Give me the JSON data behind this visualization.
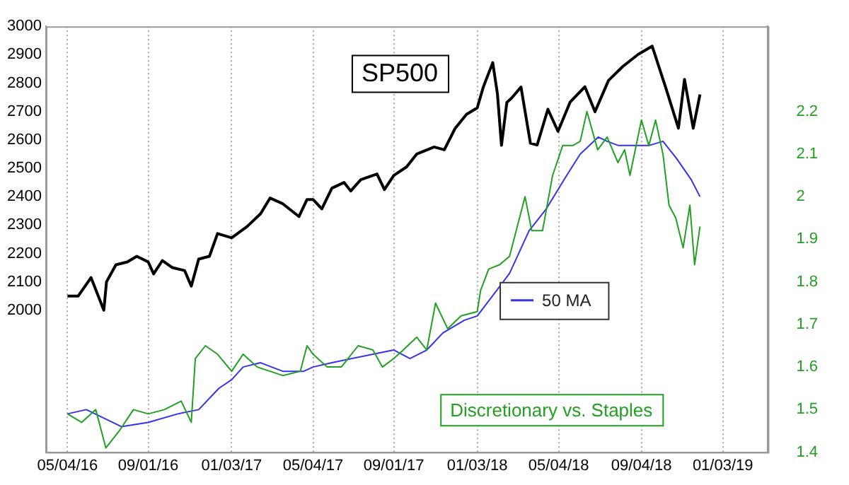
{
  "chart_data": {
    "type": "line",
    "xlim": [
      "2016-04-02",
      "2019-03-11"
    ],
    "xticks": [
      {
        "value": "2016-05-04",
        "label": "05/04/16"
      },
      {
        "value": "2016-09-01",
        "label": "09/01/16"
      },
      {
        "value": "2017-01-03",
        "label": "01/03/17"
      },
      {
        "value": "2017-05-04",
        "label": "05/04/17"
      },
      {
        "value": "2017-09-01",
        "label": "09/01/17"
      },
      {
        "value": "2018-01-03",
        "label": "01/03/18"
      },
      {
        "value": "2018-05-04",
        "label": "05/04/18"
      },
      {
        "value": "2018-09-04",
        "label": "09/04/18"
      },
      {
        "value": "2019-01-03",
        "label": "01/03/19"
      }
    ],
    "ylim": [
      1500,
      3000
    ],
    "yticks": [
      2000,
      2100,
      2200,
      2300,
      2400,
      2500,
      2600,
      2700,
      2800,
      2900,
      3000
    ],
    "y2lim": [
      1.4,
      2.4
    ],
    "y2ticks": [
      1.4,
      1.5,
      1.6,
      1.7,
      1.8,
      1.9,
      2,
      2.1,
      2.2
    ],
    "grid": "x",
    "legend": "right",
    "marker": "none",
    "series": [
      {
        "color": "#000000",
        "x": [
          "2016-05-04",
          "2016-05-20",
          "2016-06-08",
          "2016-06-27",
          "2016-07-01",
          "2016-07-15",
          "2016-08-01",
          "2016-08-15",
          "2016-09-01",
          "2016-09-09",
          "2016-09-22",
          "2016-10-07",
          "2016-10-25",
          "2016-11-04",
          "2016-11-15",
          "2016-12-01",
          "2016-12-13",
          "2017-01-03",
          "2017-01-26",
          "2017-02-15",
          "2017-03-01",
          "2017-03-20",
          "2017-04-13",
          "2017-04-25",
          "2017-05-04",
          "2017-05-17",
          "2017-06-01",
          "2017-06-19",
          "2017-06-29",
          "2017-07-14",
          "2017-08-07",
          "2017-08-18",
          "2017-09-01",
          "2017-09-20",
          "2017-10-05",
          "2017-10-31",
          "2017-11-15",
          "2017-12-01",
          "2017-12-18",
          "2018-01-03",
          "2018-01-12",
          "2018-01-26",
          "2018-02-02",
          "2018-02-08",
          "2018-02-16",
          "2018-02-23",
          "2018-03-09",
          "2018-03-23",
          "2018-04-02",
          "2018-04-18",
          "2018-05-03",
          "2018-05-21",
          "2018-06-12",
          "2018-06-27",
          "2018-07-17",
          "2018-08-07",
          "2018-08-30",
          "2018-09-20",
          "2018-10-10",
          "2018-10-29",
          "2018-11-07",
          "2018-11-20",
          "2018-11-30"
        ],
        "values": [
          2050,
          2050,
          2115,
          2000,
          2100,
          2160,
          2170,
          2190,
          2170,
          2128,
          2175,
          2150,
          2140,
          2085,
          2180,
          2190,
          2270,
          2255,
          2295,
          2340,
          2395,
          2375,
          2330,
          2390,
          2390,
          2357,
          2430,
          2450,
          2420,
          2460,
          2480,
          2425,
          2475,
          2505,
          2550,
          2575,
          2565,
          2640,
          2690,
          2713,
          2786,
          2872,
          2762,
          2581,
          2732,
          2747,
          2786,
          2588,
          2582,
          2708,
          2630,
          2733,
          2787,
          2699,
          2809,
          2858,
          2901,
          2930,
          2785,
          2641,
          2813,
          2641,
          2760
        ]
      },
      {
        "color": "#22a022",
        "axis": "y2",
        "x": [
          "2016-05-04",
          "2016-05-25",
          "2016-06-15",
          "2016-06-30",
          "2016-07-20",
          "2016-08-10",
          "2016-09-01",
          "2016-09-25",
          "2016-10-20",
          "2016-11-04",
          "2016-11-10",
          "2016-11-25",
          "2016-12-13",
          "2017-01-03",
          "2017-01-20",
          "2017-02-10",
          "2017-03-01",
          "2017-03-20",
          "2017-04-15",
          "2017-04-25",
          "2017-05-04",
          "2017-05-25",
          "2017-06-15",
          "2017-07-10",
          "2017-08-01",
          "2017-08-15",
          "2017-09-01",
          "2017-09-15",
          "2017-10-05",
          "2017-10-20",
          "2017-11-02",
          "2017-11-20",
          "2017-12-10",
          "2018-01-03",
          "2018-01-08",
          "2018-01-20",
          "2018-02-05",
          "2018-02-20",
          "2018-03-15",
          "2018-03-25",
          "2018-04-10",
          "2018-04-25",
          "2018-05-10",
          "2018-05-25",
          "2018-06-05",
          "2018-06-15",
          "2018-07-01",
          "2018-07-15",
          "2018-07-31",
          "2018-08-10",
          "2018-08-18",
          "2018-09-04",
          "2018-09-15",
          "2018-09-25",
          "2018-10-06",
          "2018-10-15",
          "2018-10-25",
          "2018-11-05",
          "2018-11-15",
          "2018-11-22",
          "2018-11-30"
        ],
        "values": [
          1.49,
          1.47,
          1.5,
          1.41,
          1.45,
          1.5,
          1.49,
          1.5,
          1.52,
          1.47,
          1.62,
          1.65,
          1.63,
          1.59,
          1.63,
          1.6,
          1.59,
          1.58,
          1.59,
          1.65,
          1.63,
          1.6,
          1.6,
          1.65,
          1.64,
          1.6,
          1.62,
          1.64,
          1.67,
          1.64,
          1.75,
          1.69,
          1.72,
          1.73,
          1.78,
          1.83,
          1.84,
          1.86,
          2,
          1.92,
          1.92,
          2.05,
          2.12,
          2.12,
          2.13,
          2.2,
          2.11,
          2.14,
          2.08,
          2.11,
          2.05,
          2.18,
          2.12,
          2.18,
          2.1,
          1.98,
          1.95,
          1.88,
          1.98,
          1.84,
          1.93
        ]
      },
      {
        "name": "50 MA",
        "color": "#3333ee",
        "axis": "y2",
        "x": [
          "2016-05-04",
          "2016-06-01",
          "2016-07-23",
          "2016-09-01",
          "2016-10-15",
          "2016-11-15",
          "2016-12-15",
          "2017-01-03",
          "2017-01-20",
          "2017-02-15",
          "2017-03-20",
          "2017-04-20",
          "2017-05-04",
          "2017-06-01",
          "2017-07-01",
          "2017-08-01",
          "2017-09-01",
          "2017-09-25",
          "2017-10-20",
          "2017-11-13",
          "2017-12-15",
          "2018-01-03",
          "2018-02-01",
          "2018-02-20",
          "2018-03-21",
          "2018-04-15",
          "2018-05-16",
          "2018-06-05",
          "2018-07-02",
          "2018-07-15",
          "2018-08-01",
          "2018-08-15",
          "2018-09-15",
          "2018-10-06",
          "2018-10-26",
          "2018-11-17",
          "2018-11-30"
        ],
        "values": [
          1.49,
          1.5,
          1.46,
          1.47,
          1.49,
          1.5,
          1.55,
          1.57,
          1.6,
          1.61,
          1.59,
          1.59,
          1.6,
          1.61,
          1.62,
          1.63,
          1.64,
          1.62,
          1.64,
          1.68,
          1.71,
          1.72,
          1.78,
          1.82,
          1.92,
          1.97,
          2.05,
          2.1,
          2.14,
          2.13,
          2.12,
          2.12,
          2.12,
          2.13,
          2.09,
          2.04,
          2
        ]
      }
    ],
    "annotations": [
      "SP500",
      "Discretionary vs. Staples"
    ]
  }
}
